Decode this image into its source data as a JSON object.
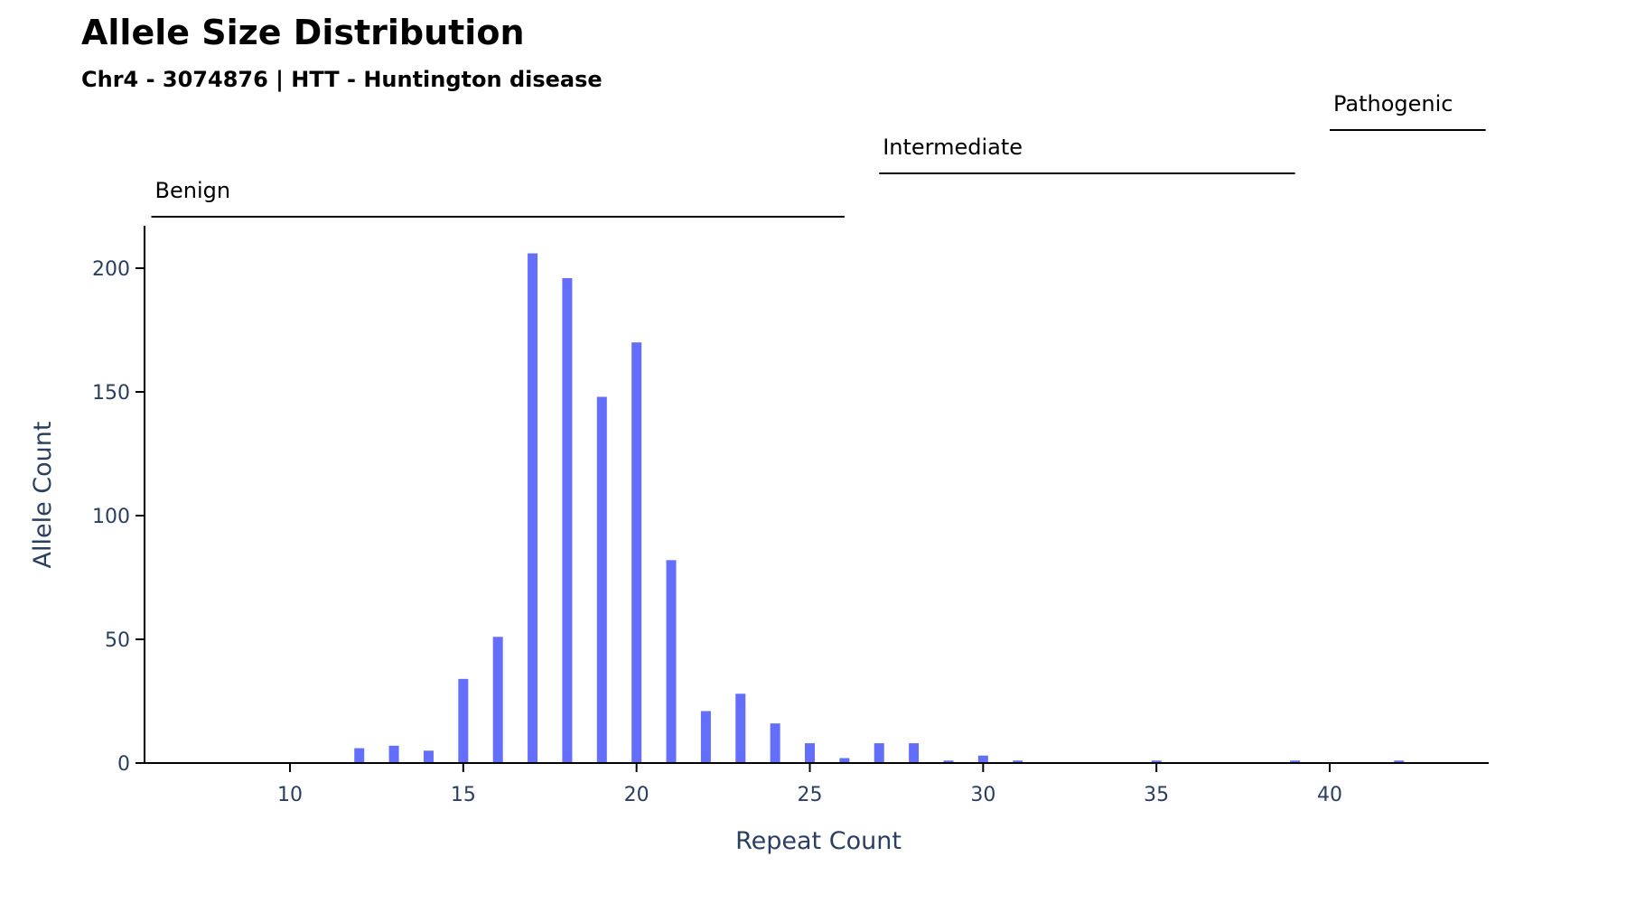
{
  "chart_data": {
    "type": "bar",
    "title": "Allele Size Distribution",
    "subtitle": "Chr4 - 3074876 | HTT - Huntington disease",
    "xlabel": "Repeat Count",
    "ylabel": "Allele Count",
    "xlim": [
      5.9,
      44.5
    ],
    "ylim": [
      0,
      216
    ],
    "xticks": [
      10,
      15,
      20,
      25,
      30,
      35,
      40
    ],
    "yticks": [
      0,
      50,
      100,
      150,
      200
    ],
    "grid": false,
    "bar_color": "#636efa",
    "x": [
      12,
      13,
      14,
      15,
      16,
      17,
      18,
      19,
      20,
      21,
      22,
      23,
      24,
      25,
      26,
      27,
      28,
      29,
      30,
      31,
      35,
      39,
      42
    ],
    "values": [
      6,
      7,
      5,
      34,
      51,
      206,
      196,
      148,
      170,
      82,
      21,
      28,
      16,
      8,
      2,
      8,
      8,
      1,
      3,
      1,
      1,
      1,
      1
    ],
    "ranges": [
      {
        "label": "Benign",
        "start": 6,
        "end": 26
      },
      {
        "label": "Intermediate",
        "start": 27,
        "end": 39
      },
      {
        "label": "Pathogenic",
        "start": 40,
        "end": 44.5
      }
    ]
  }
}
